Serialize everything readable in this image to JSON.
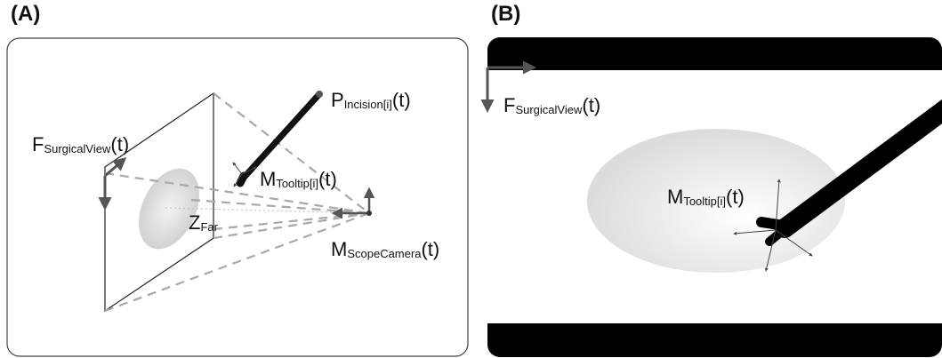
{
  "panel_a": {
    "label": "(A)",
    "labels": {
      "p_main": "P",
      "p_sub": "Incision[i]",
      "p_tail": "(t)",
      "f_main": "F",
      "f_sub": "SurgicalView",
      "f_tail": "(t)",
      "m_tip_main": "M",
      "m_tip_sub": "Tooltip[i]",
      "m_tip_tail": "(t)",
      "z_main": "Z",
      "z_sub": "Far",
      "m_cam_main": "M",
      "m_cam_sub": "ScopeCamera",
      "m_cam_tail": "(t)"
    }
  },
  "panel_b": {
    "label": "(B)",
    "labels": {
      "f_main": "F",
      "f_sub": "SurgicalView",
      "f_tail": "(t)",
      "m_tip_main": "M",
      "m_tip_sub": "Tooltip[i]",
      "m_tip_tail": "(t)"
    }
  },
  "colors": {
    "frame_border": "#444444",
    "arrow_gray": "#555555",
    "dash_gray": "#a8a8a8",
    "instrument": "#111111",
    "letterbox": "#000000"
  }
}
